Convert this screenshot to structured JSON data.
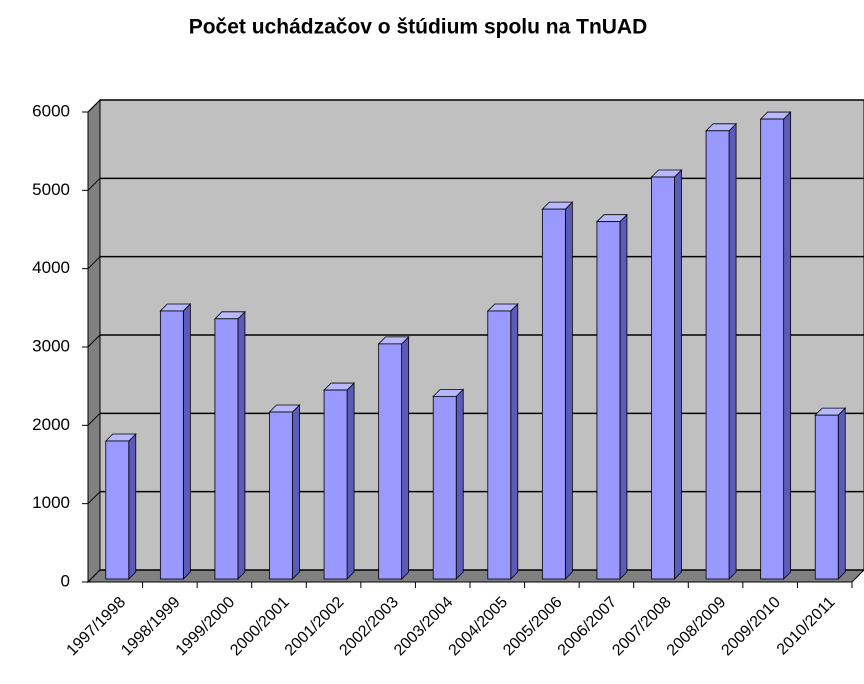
{
  "chart_data": {
    "type": "bar",
    "title": "Počet uchádzačov o štúdium spolu na TnUAD",
    "categories": [
      "1997/1998",
      "1998/1999",
      "1999/2000",
      "2000/2001",
      "2001/2002",
      "2002/2003",
      "2003/2004",
      "2004/2005",
      "2005/2006",
      "2006/2007",
      "2007/2008",
      "2008/2009",
      "2009/2010",
      "2010/2011"
    ],
    "values": [
      1800,
      3460,
      3360,
      2170,
      2450,
      3040,
      2370,
      3460,
      4760,
      4600,
      5170,
      5760,
      5910,
      2130
    ],
    "color": "#9999ff",
    "ylim": [
      0,
      6000
    ],
    "yticks": [
      0,
      1000,
      2000,
      3000,
      4000,
      5000,
      6000
    ],
    "grid": true
  }
}
